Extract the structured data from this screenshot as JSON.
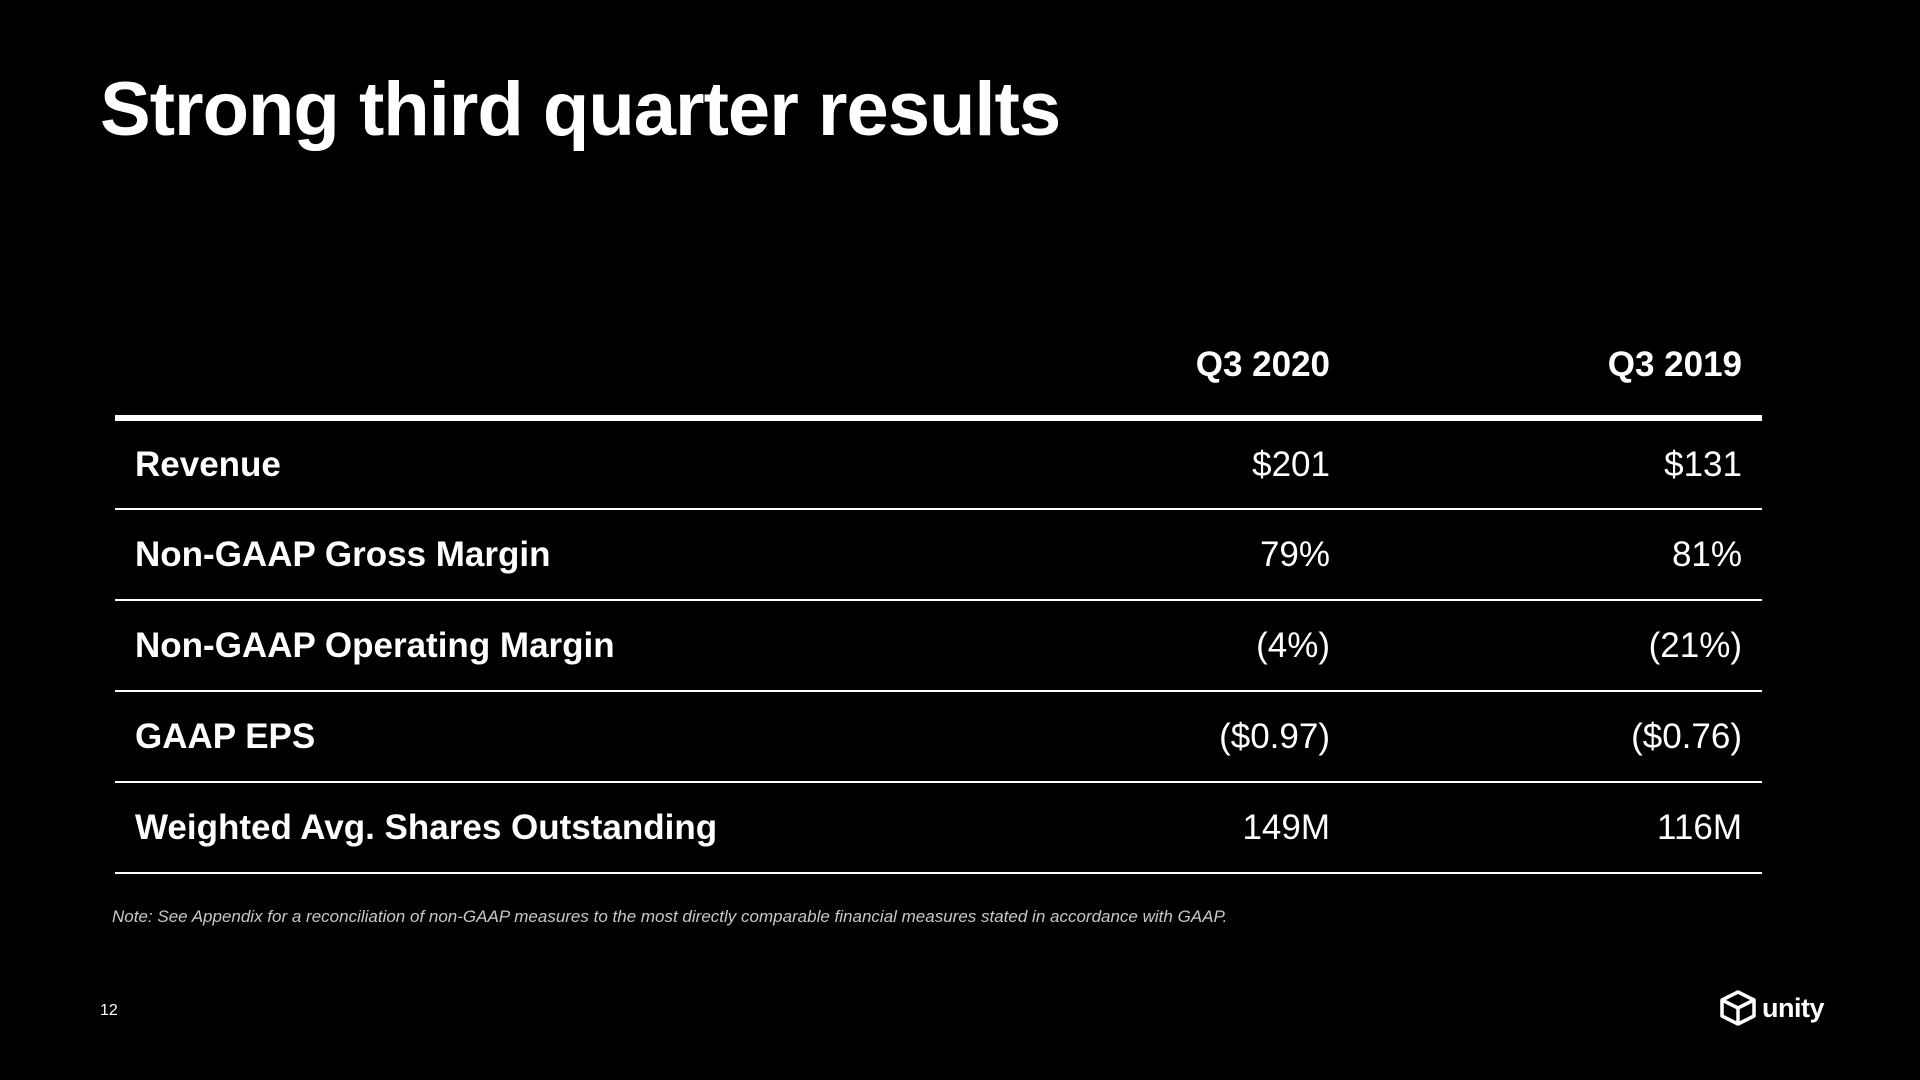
{
  "slide": {
    "title": "Strong third quarter results",
    "page_number": "12",
    "brand_name": "unity",
    "brand_icon": "unity-logo-icon",
    "background_color": "#000000",
    "text_color": "#ffffff"
  },
  "table": {
    "columns": [
      "",
      "Q3 2020",
      "Q3 2019"
    ],
    "rows": [
      {
        "label": "Revenue",
        "q3_2020": "$201",
        "q3_2019": "$131"
      },
      {
        "label": "Non-GAAP Gross Margin",
        "q3_2020": "79%",
        "q3_2019": "81%"
      },
      {
        "label": "Non-GAAP Operating Margin",
        "q3_2020": "(4%)",
        "q3_2019": "(21%)"
      },
      {
        "label": "GAAP EPS",
        "q3_2020": "($0.97)",
        "q3_2019": "($0.76)"
      },
      {
        "label": "Weighted Avg. Shares Outstanding",
        "q3_2020": "149M",
        "q3_2019": "116M"
      }
    ]
  },
  "footnote": "Note: See Appendix for a reconciliation of non-GAAP measures to the most directly comparable financial measures stated in accordance with GAAP."
}
